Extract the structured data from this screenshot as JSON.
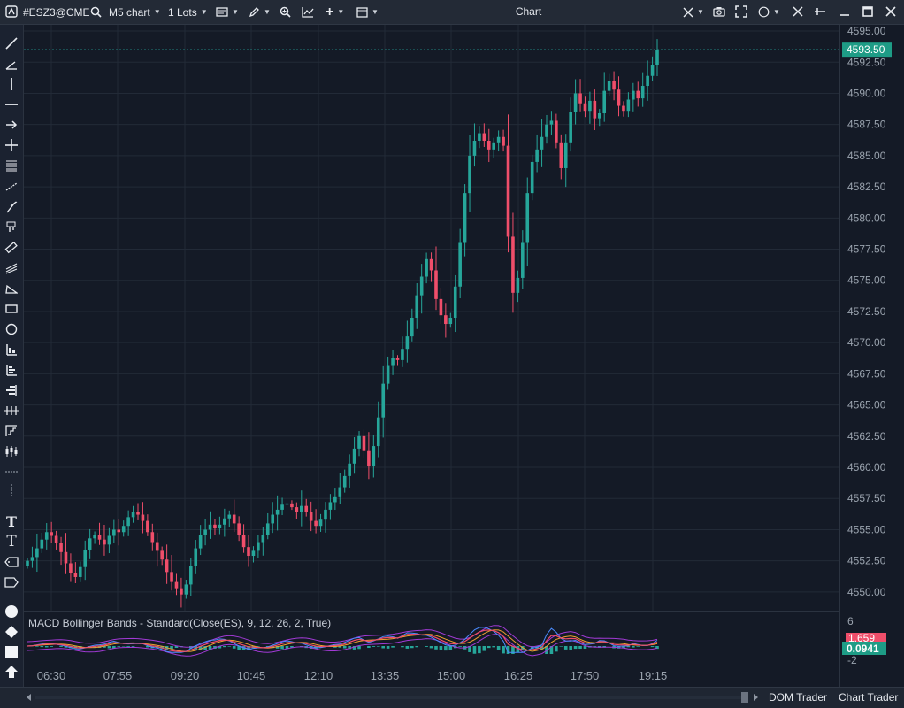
{
  "toolbar": {
    "symbol": "#ESZ3@CME",
    "chart_type": "M5 chart",
    "lots": "1 Lots",
    "title": "Chart"
  },
  "price_axis": {
    "labels": [
      "4595.00",
      "4592.50",
      "4590.00",
      "4587.50",
      "4585.00",
      "4582.50",
      "4580.00",
      "4577.50",
      "4575.00",
      "4572.50",
      "4570.00",
      "4567.50",
      "4565.00",
      "4562.50",
      "4560.00",
      "4557.50",
      "4555.00",
      "4552.50",
      "4550.00"
    ],
    "current_price": "4593.50"
  },
  "time_axis": {
    "labels": [
      "06:30",
      "07:55",
      "09:20",
      "10:45",
      "12:10",
      "13:35",
      "15:00",
      "16:25",
      "17:50",
      "19:15"
    ]
  },
  "indicator": {
    "label": "MACD Bollinger Bands - Standard(Close(ES), 9, 12, 26, 2, True)",
    "axis_top": "6",
    "axis_bottom": "-2",
    "value_red": "1.659",
    "value_green": "0.0941"
  },
  "status": {
    "dom_trader": "DOM Trader",
    "chart_trader": "Chart Trader"
  },
  "chart_data": {
    "type": "candlestick",
    "symbol": "#ESZ3@CME",
    "interval": "M5",
    "ylim": [
      4548.5,
      4595.5
    ],
    "x_labels": [
      "06:30",
      "07:55",
      "09:20",
      "10:45",
      "12:10",
      "13:35",
      "15:00",
      "16:25",
      "17:50",
      "19:15"
    ],
    "closes": [
      4552.5,
      4552.8,
      4553.5,
      4554.2,
      4554.8,
      4554.5,
      4553.9,
      4553.2,
      4552.3,
      4551.5,
      4551.2,
      4552.0,
      4553.4,
      4554.3,
      4554.6,
      4554.2,
      4553.8,
      4554.5,
      4555.0,
      4554.8,
      4555.3,
      4556.0,
      4556.4,
      4556.2,
      4555.7,
      4554.8,
      4554.0,
      4553.3,
      4552.6,
      4551.6,
      4550.8,
      4550.3,
      4549.8,
      4550.6,
      4552.1,
      4553.5,
      4554.6,
      4555.0,
      4555.4,
      4555.1,
      4555.4,
      4555.9,
      4556.2,
      4555.5,
      4554.6,
      4553.6,
      4552.9,
      4553.3,
      4554.0,
      4554.6,
      4555.5,
      4556.2,
      4556.6,
      4557.0,
      4557.1,
      4556.8,
      4556.4,
      4556.9,
      4556.4,
      4555.7,
      4555.3,
      4555.8,
      4556.6,
      4557.2,
      4557.6,
      4558.4,
      4559.3,
      4560.3,
      4561.5,
      4562.5,
      4561.3,
      4560.1,
      4561.7,
      4564.0,
      4566.7,
      4568.2,
      4568.8,
      4568.6,
      4569.5,
      4570.5,
      4572.0,
      4573.8,
      4575.3,
      4576.7,
      4575.8,
      4573.5,
      4572.2,
      4571.5,
      4572.0,
      4574.5,
      4578.0,
      4582.0,
      4585.0,
      4586.2,
      4586.8,
      4586.2,
      4585.5,
      4586.0,
      4586.5,
      4585.8,
      4578.5,
      4574.0,
      4575.2,
      4578.0,
      4582.0,
      4584.5,
      4585.5,
      4586.5,
      4587.5,
      4587.8,
      4586.0,
      4584.0,
      4586.0,
      4588.5,
      4590.0,
      4589.2,
      4588.6,
      4589.4,
      4588.0,
      4588.4,
      4590.2,
      4591.0,
      4590.3,
      4589.0,
      4588.6,
      4589.5,
      4590.2,
      4589.6,
      4590.6,
      4591.4,
      4592.3,
      4593.5
    ]
  }
}
